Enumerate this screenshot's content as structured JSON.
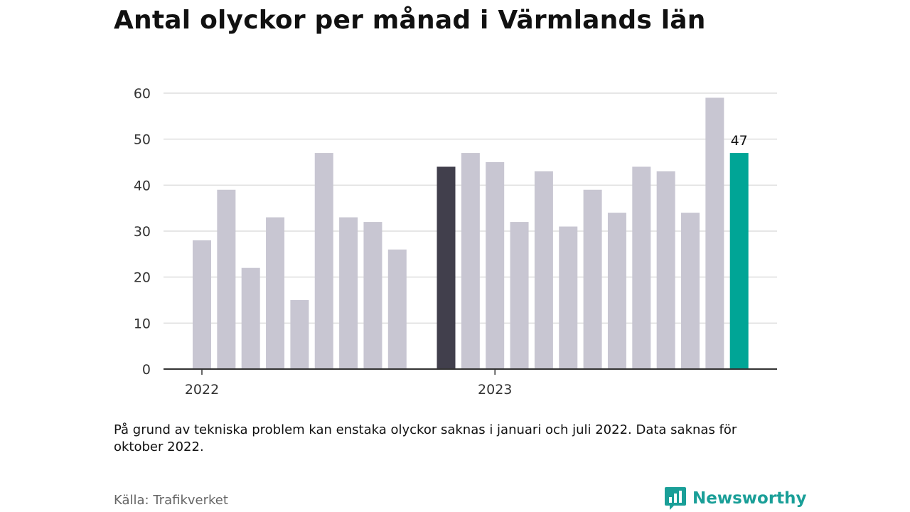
{
  "title": "Antal olyckor per månad i Värmlands län",
  "note": "På grund av tekniska problem kan enstaka olyckor saknas i januari och juli 2022. Data saknas för oktober 2022.",
  "source": "Källa: Trafikverket",
  "brand": {
    "name": "Newsworthy",
    "icon": "newsworthy-logo-icon",
    "color": "#1a9f98"
  },
  "colors": {
    "bar_default": "#c8c6d2",
    "bar_reference": "#413f4c",
    "bar_latest": "#00a596",
    "grid": "#dddddd",
    "axis": "#333333"
  },
  "chart_data": {
    "type": "bar",
    "title": "Antal olyckor per månad i Värmlands län",
    "xlabel": "",
    "ylabel": "",
    "ylim": [
      0,
      60
    ],
    "yticks": [
      0,
      10,
      20,
      30,
      40,
      50,
      60
    ],
    "grid": true,
    "legend": "none",
    "year_labels": [
      {
        "label": "2022",
        "month": "2022-01"
      },
      {
        "label": "2023",
        "month": "2023-01"
      }
    ],
    "categories": [
      "2022-01",
      "2022-02",
      "2022-03",
      "2022-04",
      "2022-05",
      "2022-06",
      "2022-07",
      "2022-08",
      "2022-09",
      "2022-10",
      "2022-11",
      "2022-12",
      "2023-01",
      "2023-02",
      "2023-03",
      "2023-04",
      "2023-05",
      "2023-06",
      "2023-07",
      "2023-08",
      "2023-09",
      "2023-10",
      "2023-11",
      "2023-12"
    ],
    "values": [
      28,
      39,
      22,
      33,
      15,
      47,
      33,
      32,
      26,
      null,
      44,
      47,
      45,
      32,
      43,
      31,
      39,
      34,
      44,
      43,
      34,
      59,
      47,
      null
    ],
    "highlight": {
      "reference_month": "2022-11",
      "latest_month": "2023-11"
    },
    "data_labels": [
      {
        "month": "2023-11",
        "text": "47"
      }
    ]
  }
}
